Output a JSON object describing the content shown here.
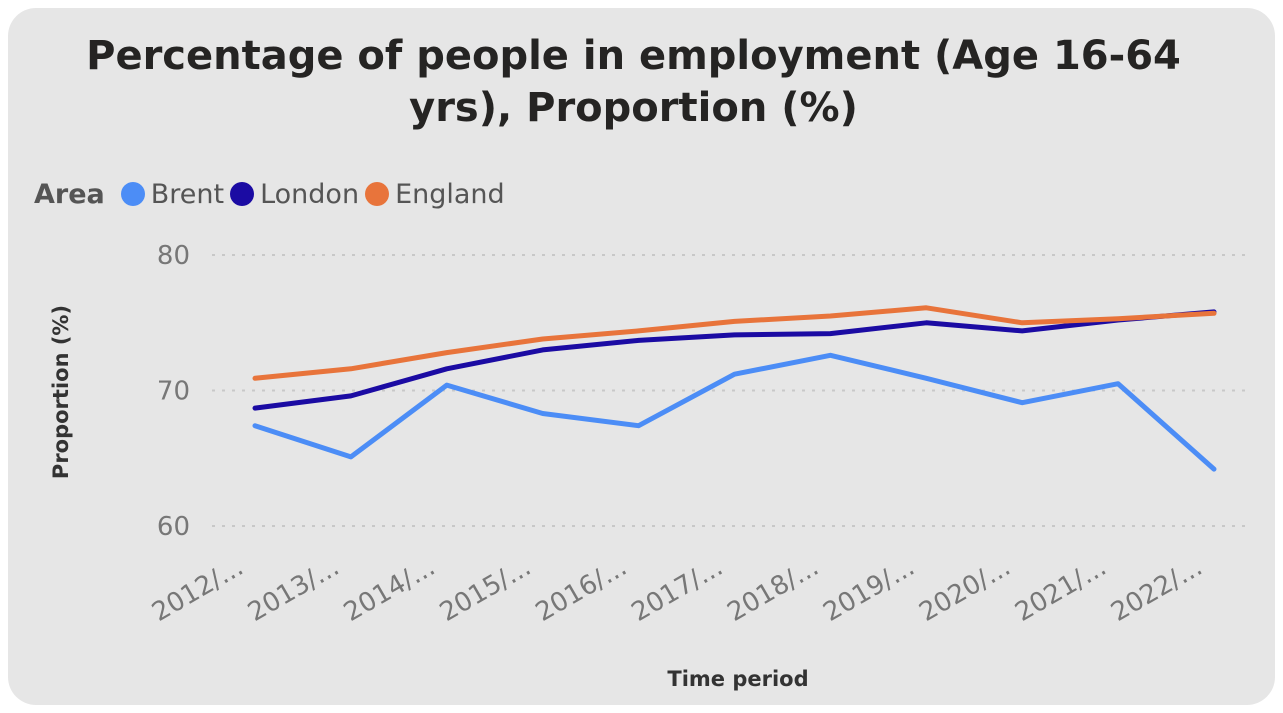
{
  "chart_data": {
    "type": "line",
    "title": "Percentage of people in employment (Age 16-64 yrs), Proportion (%)",
    "xlabel": "Time period",
    "ylabel": "Proportion (%)",
    "legend_title": "Area",
    "legend_position": "top-left",
    "grid": true,
    "ylim": [
      60,
      80
    ],
    "yticks": [
      60,
      70,
      80
    ],
    "categories": [
      "2012/...",
      "2013/...",
      "2014/...",
      "2015/...",
      "2016/...",
      "2017/...",
      "2018/...",
      "2019/...",
      "2020/...",
      "2021/...",
      "2022/..."
    ],
    "series": [
      {
        "name": "Brent",
        "color": "#4c8df6",
        "values": [
          67.4,
          65.1,
          70.4,
          68.3,
          67.4,
          71.2,
          72.6,
          70.9,
          69.1,
          70.5,
          64.2
        ]
      },
      {
        "name": "London",
        "color": "#1b0ba3",
        "values": [
          68.7,
          69.6,
          71.6,
          73.0,
          73.7,
          74.1,
          74.2,
          75.0,
          74.4,
          75.2,
          75.8
        ]
      },
      {
        "name": "England",
        "color": "#e8743b",
        "values": [
          70.9,
          71.6,
          72.8,
          73.8,
          74.4,
          75.1,
          75.5,
          76.1,
          75.0,
          75.3,
          75.7
        ]
      }
    ]
  }
}
